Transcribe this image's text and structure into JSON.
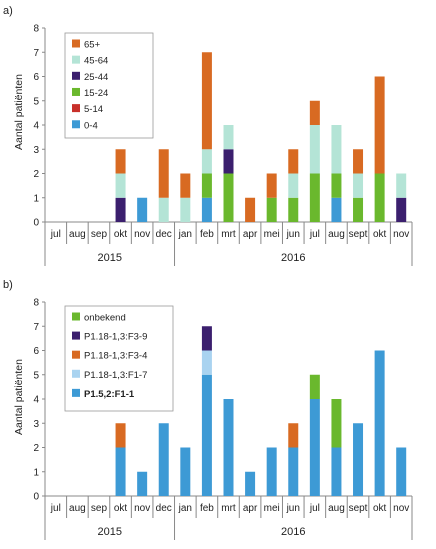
{
  "chart_data": [
    {
      "panel_label": "a)",
      "type": "bar",
      "stacked": true,
      "categories": [
        "jul",
        "aug",
        "sep",
        "okt",
        "nov",
        "dec",
        "jan",
        "feb",
        "mrt",
        "apr",
        "mei",
        "jun",
        "jul",
        "aug",
        "sept",
        "okt",
        "nov"
      ],
      "year_groups": [
        {
          "label": "2015",
          "count": 6
        },
        {
          "label": "2016",
          "count": 11
        }
      ],
      "ylabel": "Aantal patiënten",
      "ylim": [
        0,
        8
      ],
      "yticks": [
        0,
        1,
        2,
        3,
        4,
        5,
        6,
        7,
        8
      ],
      "grid": false,
      "legend_position": "top-left",
      "series": [
        {
          "name": "0-4",
          "color": "#3d9ad5",
          "values": [
            0,
            0,
            0,
            0,
            1,
            0,
            0,
            1,
            0,
            0,
            0,
            0,
            0,
            1,
            0,
            0,
            0
          ]
        },
        {
          "name": "5-14",
          "color": "#c8302a",
          "values": [
            0,
            0,
            0,
            0,
            0,
            0,
            0,
            0,
            0,
            0,
            0,
            0,
            0,
            0,
            0,
            0,
            0
          ]
        },
        {
          "name": "15-24",
          "color": "#6ab82d",
          "values": [
            0,
            0,
            0,
            0,
            0,
            0,
            0,
            1,
            2,
            0,
            1,
            1,
            2,
            1,
            1,
            2,
            0
          ]
        },
        {
          "name": "25-44",
          "color": "#3b1f6e",
          "values": [
            0,
            0,
            0,
            1,
            0,
            0,
            0,
            0,
            1,
            0,
            0,
            0,
            0,
            0,
            0,
            0,
            1
          ]
        },
        {
          "name": "45-64",
          "color": "#b4e4d6",
          "values": [
            0,
            0,
            0,
            1,
            0,
            1,
            1,
            1,
            1,
            0,
            0,
            1,
            2,
            2,
            1,
            0,
            1
          ]
        },
        {
          "name": "65+",
          "color": "#d86a22",
          "values": [
            0,
            0,
            0,
            1,
            0,
            2,
            1,
            4,
            0,
            1,
            1,
            1,
            1,
            0,
            1,
            4,
            0
          ]
        }
      ]
    },
    {
      "panel_label": "b)",
      "type": "bar",
      "stacked": true,
      "categories": [
        "jul",
        "aug",
        "sep",
        "okt",
        "nov",
        "dec",
        "jan",
        "feb",
        "mrt",
        "apr",
        "mei",
        "jun",
        "jul",
        "aug",
        "sept",
        "okt",
        "nov"
      ],
      "year_groups": [
        {
          "label": "2015",
          "count": 6
        },
        {
          "label": "2016",
          "count": 11
        }
      ],
      "ylabel": "Aantal patiënten",
      "ylim": [
        0,
        8
      ],
      "yticks": [
        0,
        1,
        2,
        3,
        4,
        5,
        6,
        7,
        8
      ],
      "grid": false,
      "legend_position": "top-left",
      "series": [
        {
          "name": "P1.5,2:F1-1",
          "color": "#3d9ad5",
          "bold": true,
          "values": [
            0,
            0,
            0,
            2,
            1,
            3,
            2,
            5,
            4,
            1,
            2,
            2,
            4,
            2,
            3,
            6,
            2
          ]
        },
        {
          "name": "P1.18-1,3:F1-7",
          "color": "#a9d3f0",
          "values": [
            0,
            0,
            0,
            0,
            0,
            0,
            0,
            1,
            0,
            0,
            0,
            0,
            0,
            0,
            0,
            0,
            0
          ]
        },
        {
          "name": "P1.18-1,3:F3-4",
          "color": "#d86a22",
          "values": [
            0,
            0,
            0,
            1,
            0,
            0,
            0,
            0,
            0,
            0,
            0,
            1,
            0,
            0,
            0,
            0,
            0
          ]
        },
        {
          "name": "P1.18-1,3:F3-9",
          "color": "#3b1f6e",
          "values": [
            0,
            0,
            0,
            0,
            0,
            0,
            0,
            1,
            0,
            0,
            0,
            0,
            0,
            0,
            0,
            0,
            0
          ]
        },
        {
          "name": "onbekend",
          "color": "#6ab82d",
          "values": [
            0,
            0,
            0,
            0,
            0,
            0,
            0,
            0,
            0,
            0,
            0,
            0,
            1,
            2,
            0,
            0,
            0
          ]
        }
      ]
    }
  ]
}
